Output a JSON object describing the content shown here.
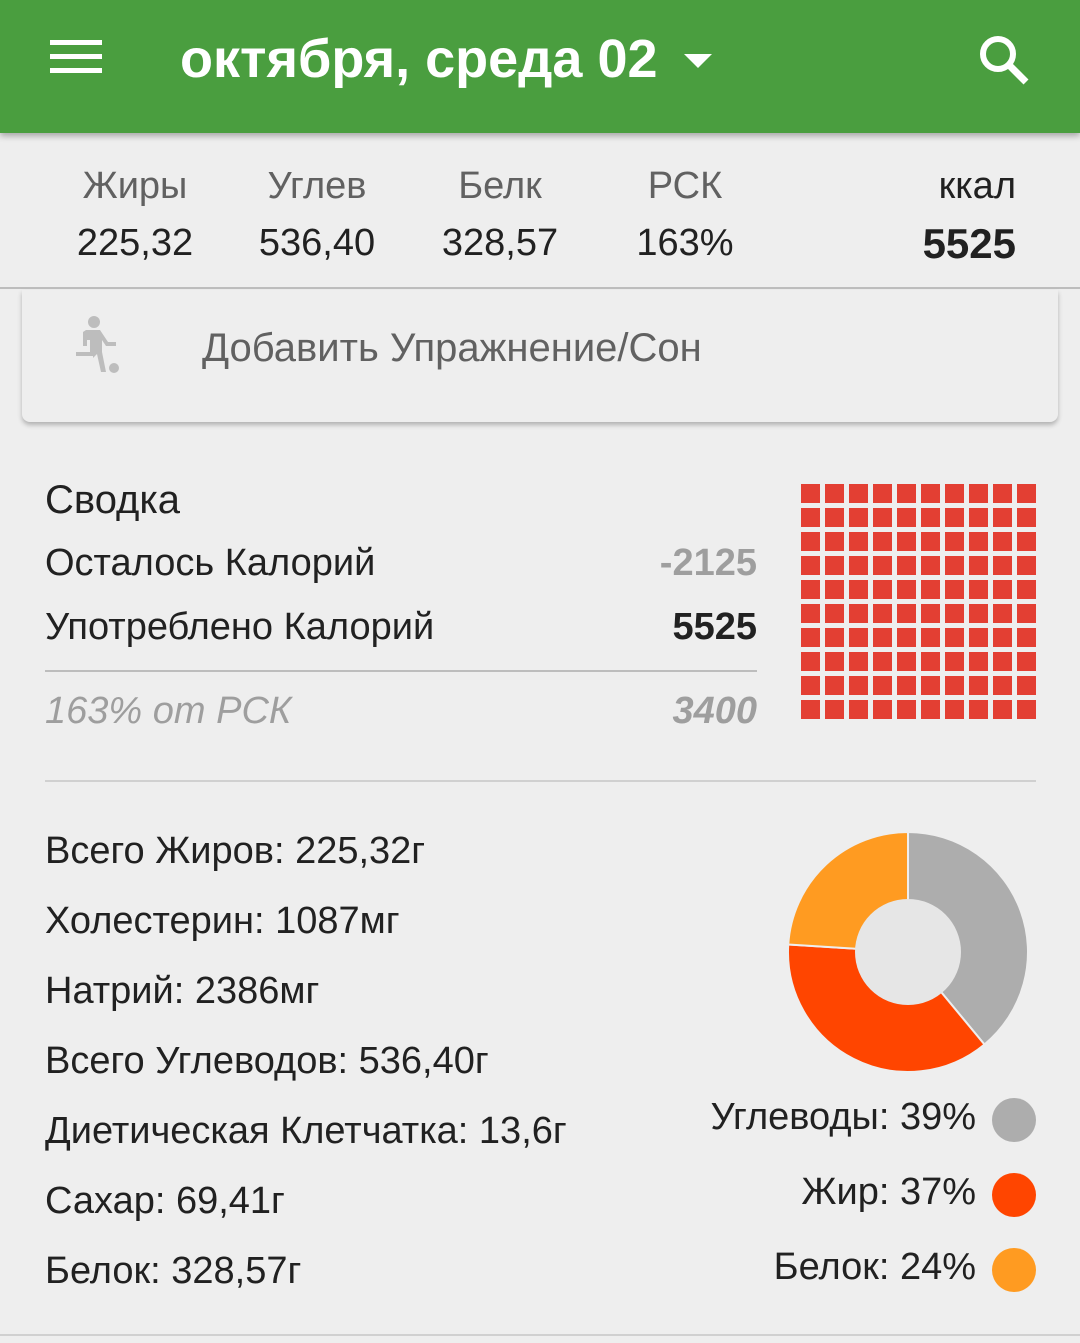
{
  "header": {
    "title": "октября, среда 02"
  },
  "macros": [
    {
      "label": "Жиры",
      "value": "225,32"
    },
    {
      "label": "Углев",
      "value": "536,40"
    },
    {
      "label": "Белк",
      "value": "328,57"
    },
    {
      "label": "РСК",
      "value": "163%"
    }
  ],
  "kcal": {
    "label": "ккал",
    "value": "5525"
  },
  "exercise": {
    "label": "Добавить Упражнение/Сон"
  },
  "summary": {
    "title": "Сводка",
    "remaining_label": "Осталось Калорий",
    "remaining_value": "-2125",
    "consumed_label": "Употреблено Калорий",
    "consumed_value": "5525",
    "rdi_label": "163% от РСК",
    "rdi_value": "3400",
    "grid_filled_percent": 100
  },
  "nutrients": [
    "Всего Жиров: 225,32г",
    "Холестерин: 1087мг",
    "Натрий: 2386мг",
    "Всего Углеводов: 536,40г",
    "Диетическая Клетчатка: 13,6г",
    "Сахар: 69,41г",
    "Белок: 328,57г"
  ],
  "chart_data": {
    "type": "pie",
    "series": [
      {
        "name": "Углеводы: 39%",
        "value": 39,
        "color": "#adadad"
      },
      {
        "name": "Жир: 37%",
        "value": 37,
        "color": "#ff4500"
      },
      {
        "name": "Белок: 24%",
        "value": 24,
        "color": "#ff9b21"
      }
    ]
  },
  "colors": {
    "appbar": "#4a9e3f",
    "grid": "#e33f33"
  }
}
